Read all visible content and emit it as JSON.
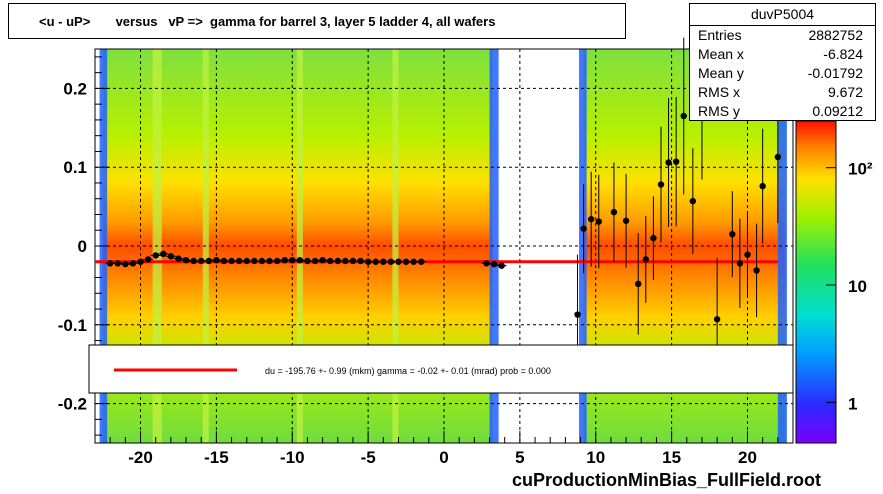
{
  "title": "<u - uP>       versus   vP =>  gamma for barrel 3, layer 5 ladder 4, all wafers",
  "stats": {
    "name": "duvP5004",
    "rows": [
      {
        "key": "Entries",
        "value": "2882752"
      },
      {
        "key": "Mean x",
        "value": "-6.824"
      },
      {
        "key": "Mean y",
        "value": "-0.01792"
      },
      {
        "key": "RMS x",
        "value": "9.672"
      },
      {
        "key": "RMS y",
        "value": "0.09212"
      }
    ]
  },
  "legend_text": "du = -195.76 +-  0.99 (mkm) gamma =   -0.02 +-  0.01 (mrad) prob = 0.000",
  "footer": "cuProductionMinBias_FullField.root",
  "colors": {
    "fit_line": "#ff0000",
    "points": "#000000",
    "profile": "#cc66cc"
  },
  "chart_data": {
    "type": "heatmap",
    "xlim": [
      -23,
      23
    ],
    "ylim": [
      -0.25,
      0.25
    ],
    "x_ticks": [
      -20,
      -15,
      -10,
      -5,
      0,
      5,
      10,
      15,
      20
    ],
    "x_tick_labels": [
      "-20",
      "-15",
      "-10",
      "-5",
      "0",
      "5",
      "10",
      "15",
      "20"
    ],
    "y_ticks": [
      -0.2,
      -0.1,
      0,
      0.1,
      0.2
    ],
    "y_tick_labels": [
      "-0.2",
      "-0.1",
      "0",
      "0.1",
      "0.2"
    ],
    "z_scale": "log",
    "z_ticks": [
      1,
      10,
      100
    ],
    "z_tick_labels": [
      "1",
      "10",
      "10²"
    ],
    "grid": true,
    "fit_line": {
      "y": -0.02,
      "x_range": [
        -23,
        22
      ]
    },
    "profile_points": [
      {
        "x": -22.0,
        "y": -0.022
      },
      {
        "x": -21.5,
        "y": -0.022
      },
      {
        "x": -21.0,
        "y": -0.023
      },
      {
        "x": -20.5,
        "y": -0.022
      },
      {
        "x": -20.0,
        "y": -0.02
      },
      {
        "x": -19.5,
        "y": -0.017
      },
      {
        "x": -19.0,
        "y": -0.012
      },
      {
        "x": -18.5,
        "y": -0.01
      },
      {
        "x": -18.0,
        "y": -0.013
      },
      {
        "x": -17.5,
        "y": -0.016
      },
      {
        "x": -17.0,
        "y": -0.018
      },
      {
        "x": -16.5,
        "y": -0.019
      },
      {
        "x": -16.0,
        "y": -0.019
      },
      {
        "x": -15.5,
        "y": -0.019
      },
      {
        "x": -15.0,
        "y": -0.018
      },
      {
        "x": -14.5,
        "y": -0.019
      },
      {
        "x": -14.0,
        "y": -0.019
      },
      {
        "x": -13.5,
        "y": -0.019
      },
      {
        "x": -13.0,
        "y": -0.019
      },
      {
        "x": -12.5,
        "y": -0.019
      },
      {
        "x": -12.0,
        "y": -0.019
      },
      {
        "x": -11.5,
        "y": -0.019
      },
      {
        "x": -11.0,
        "y": -0.019
      },
      {
        "x": -10.5,
        "y": -0.018
      },
      {
        "x": -10.0,
        "y": -0.018
      },
      {
        "x": -9.5,
        "y": -0.018
      },
      {
        "x": -9.0,
        "y": -0.019
      },
      {
        "x": -8.5,
        "y": -0.019
      },
      {
        "x": -8.0,
        "y": -0.018
      },
      {
        "x": -7.5,
        "y": -0.019
      },
      {
        "x": -7.0,
        "y": -0.019
      },
      {
        "x": -6.5,
        "y": -0.019
      },
      {
        "x": -6.0,
        "y": -0.019
      },
      {
        "x": -5.5,
        "y": -0.019
      },
      {
        "x": -5.0,
        "y": -0.02
      },
      {
        "x": -4.5,
        "y": -0.02
      },
      {
        "x": -4.0,
        "y": -0.02
      },
      {
        "x": -3.5,
        "y": -0.02
      },
      {
        "x": -3.0,
        "y": -0.02
      },
      {
        "x": -2.5,
        "y": -0.02
      },
      {
        "x": -2.0,
        "y": -0.02
      },
      {
        "x": -1.5,
        "y": -0.02
      },
      {
        "x": 2.8,
        "y": -0.022
      },
      {
        "x": 3.3,
        "y": -0.023
      },
      {
        "x": 3.8,
        "y": -0.025
      },
      {
        "x": 8.8,
        "y": -0.087
      },
      {
        "x": 9.2,
        "y": 0.022
      },
      {
        "x": 9.7,
        "y": 0.034
      },
      {
        "x": 10.2,
        "y": 0.031
      },
      {
        "x": 11.2,
        "y": 0.043
      },
      {
        "x": 12.0,
        "y": 0.032
      },
      {
        "x": 12.8,
        "y": -0.048
      },
      {
        "x": 13.3,
        "y": -0.017
      },
      {
        "x": 13.8,
        "y": 0.01
      },
      {
        "x": 14.3,
        "y": 0.078
      },
      {
        "x": 14.8,
        "y": 0.106
      },
      {
        "x": 15.3,
        "y": 0.107
      },
      {
        "x": 15.8,
        "y": 0.165
      },
      {
        "x": 16.4,
        "y": 0.057
      },
      {
        "x": 17.0,
        "y": 0.192
      },
      {
        "x": 18.0,
        "y": -0.093
      },
      {
        "x": 19.0,
        "y": 0.015
      },
      {
        "x": 19.5,
        "y": -0.022
      },
      {
        "x": 20.0,
        "y": -0.011
      },
      {
        "x": 20.6,
        "y": -0.031
      },
      {
        "x": 21.0,
        "y": 0.076
      },
      {
        "x": 22.0,
        "y": 0.113
      }
    ]
  }
}
